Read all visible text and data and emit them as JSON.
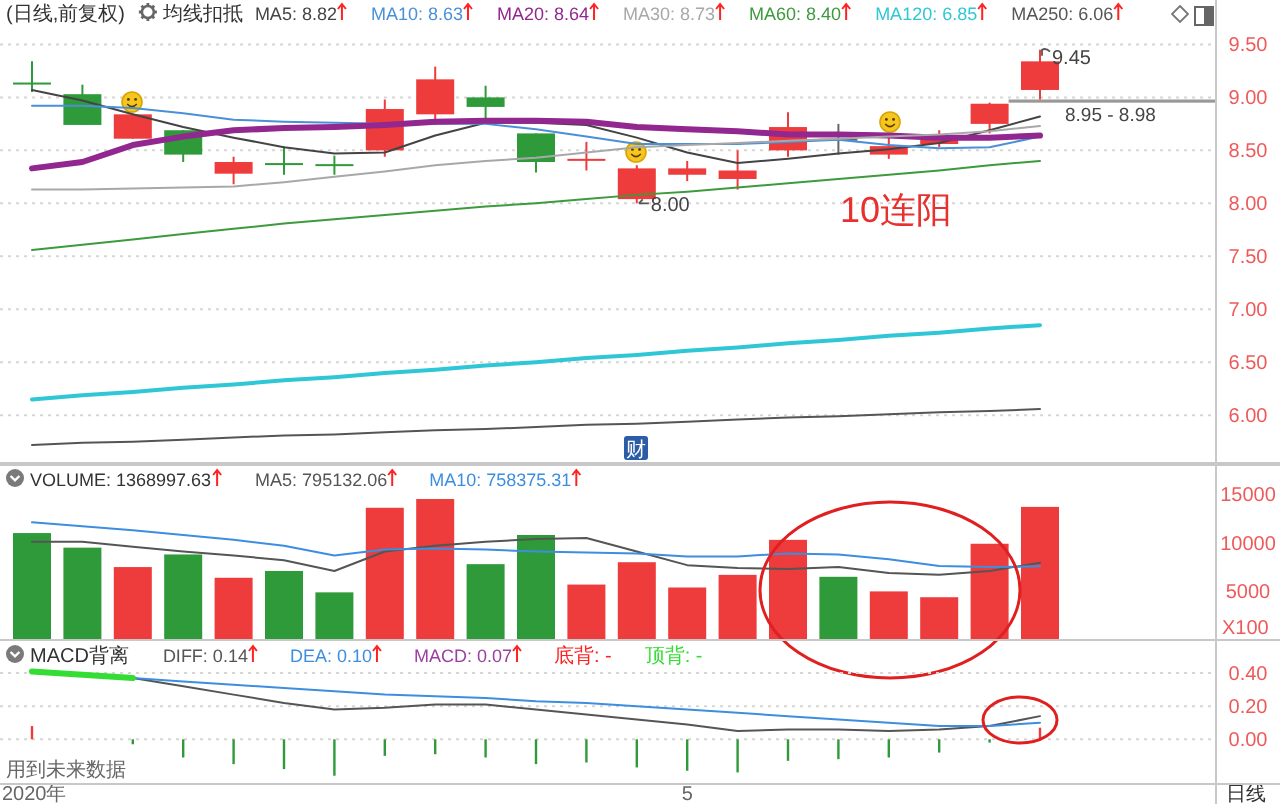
{
  "chart_data": [
    {
      "type": "candlestick",
      "title": "(日线,前复权)",
      "subtitle": "均线扣抵",
      "categories": [
        null,
        null,
        null,
        null,
        null,
        null,
        null,
        null,
        null,
        null,
        null,
        null,
        null,
        null,
        null,
        null,
        null,
        null,
        null,
        null,
        null
      ],
      "ohlc": [
        [
          9.14,
          9.34,
          9.05,
          9.13
        ],
        [
          9.03,
          9.12,
          8.74,
          8.74
        ],
        [
          8.61,
          8.84,
          8.61,
          8.84
        ],
        [
          8.69,
          8.69,
          8.39,
          8.46
        ],
        [
          8.28,
          8.44,
          8.18,
          8.39
        ],
        [
          8.38,
          8.54,
          8.27,
          8.37
        ],
        [
          8.37,
          8.45,
          8.27,
          8.36
        ],
        [
          8.5,
          8.98,
          8.44,
          8.89
        ],
        [
          8.84,
          9.29,
          8.79,
          9.17
        ],
        [
          9.0,
          9.11,
          8.79,
          8.91
        ],
        [
          8.66,
          8.66,
          8.29,
          8.39
        ],
        [
          8.41,
          8.58,
          8.31,
          8.42
        ],
        [
          8.04,
          8.36,
          8.0,
          8.33
        ],
        [
          8.27,
          8.4,
          8.21,
          8.33
        ],
        [
          8.23,
          8.5,
          8.13,
          8.31
        ],
        [
          8.5,
          8.86,
          8.44,
          8.72
        ],
        [
          8.61,
          8.75,
          8.46,
          8.61
        ],
        [
          8.46,
          8.63,
          8.42,
          8.54
        ],
        [
          8.56,
          8.69,
          8.53,
          8.63
        ],
        [
          8.75,
          8.95,
          8.66,
          8.94
        ],
        [
          9.07,
          9.45,
          8.98,
          9.34
        ]
      ],
      "colors": [
        "#2f9a3a",
        "#2f9a3a",
        "#ee3b3b",
        "#2f9a3a",
        "#ee3b3b",
        "#2f9a3a",
        "#2f9a3a",
        "#ee3b3b",
        "#ee3b3b",
        "#2f9a3a",
        "#2f9a3a",
        "#ee3b3b",
        "#ee3b3b",
        "#ee3b3b",
        "#ee3b3b",
        "#ee3b3b",
        "#666666",
        "#ee3b3b",
        "#ee3b3b",
        "#ee3b3b",
        "#ee3b3b"
      ],
      "series": [
        {
          "name": "MA5: 8.82",
          "type": "line",
          "color": "#444444",
          "values": [
            9.07,
            8.97,
            8.84,
            8.72,
            8.62,
            8.53,
            8.47,
            8.48,
            8.64,
            8.76,
            8.76,
            8.74,
            8.62,
            8.48,
            8.38,
            8.42,
            8.47,
            8.51,
            8.57,
            8.69,
            8.82
          ]
        },
        {
          "name": "MA10: 8.63",
          "type": "line",
          "color": "#4a90d9",
          "values": [
            8.92,
            8.92,
            8.9,
            8.85,
            8.79,
            8.77,
            8.76,
            8.75,
            8.75,
            8.75,
            8.7,
            8.63,
            8.56,
            8.56,
            8.56,
            8.58,
            8.6,
            8.55,
            8.52,
            8.53,
            8.63
          ]
        },
        {
          "name": "MA20: 8.64",
          "type": "line",
          "color": "#92278f",
          "values": [
            8.33,
            8.39,
            8.55,
            8.63,
            8.69,
            8.71,
            8.72,
            8.74,
            8.77,
            8.78,
            8.78,
            8.77,
            8.72,
            8.7,
            8.68,
            8.65,
            8.65,
            8.64,
            8.62,
            8.62,
            8.64
          ]
        },
        {
          "name": "MA30: 8.73",
          "type": "line",
          "color": "#a8a8a8",
          "values": [
            8.13,
            8.13,
            8.14,
            8.15,
            8.16,
            8.2,
            8.25,
            8.3,
            8.36,
            8.4,
            8.43,
            8.48,
            8.53,
            8.55,
            8.57,
            8.59,
            8.61,
            8.63,
            8.65,
            8.68,
            8.73
          ]
        },
        {
          "name": "MA60: 8.40",
          "type": "line",
          "color": "#3d9a3d",
          "values": [
            7.56,
            7.61,
            7.66,
            7.71,
            7.76,
            7.81,
            7.85,
            7.89,
            7.93,
            7.97,
            8.0,
            8.04,
            8.08,
            8.11,
            8.15,
            8.19,
            8.23,
            8.27,
            8.31,
            8.36,
            8.4
          ]
        },
        {
          "name": "MA120: 6.85",
          "type": "line",
          "color": "#2fc6d6",
          "values": [
            6.15,
            6.19,
            6.22,
            6.26,
            6.29,
            6.33,
            6.36,
            6.4,
            6.43,
            6.47,
            6.5,
            6.54,
            6.57,
            6.61,
            6.64,
            6.68,
            6.71,
            6.75,
            6.78,
            6.82,
            6.85
          ]
        },
        {
          "name": "MA250: 6.06",
          "type": "line",
          "color": "#555555",
          "values": [
            5.72,
            5.74,
            5.75,
            5.77,
            5.79,
            5.81,
            5.82,
            5.84,
            5.86,
            5.87,
            5.89,
            5.91,
            5.92,
            5.94,
            5.96,
            5.98,
            5.99,
            6.01,
            6.03,
            6.04,
            6.06
          ]
        }
      ],
      "ylim": [
        5.55,
        9.9
      ],
      "yticks": [
        {
          "value": 6,
          "label": "6.00"
        },
        {
          "value": 6.5,
          "label": "6.50"
        },
        {
          "value": 7,
          "label": "7.00"
        },
        {
          "value": 7.5,
          "label": "7.50"
        },
        {
          "value": 8,
          "label": "8.00"
        },
        {
          "value": 8.5,
          "label": "8.50"
        },
        {
          "value": 9,
          "label": "9.00"
        },
        {
          "value": 9.5,
          "label": "9.50"
        }
      ],
      "grid": "y",
      "legend": "top",
      "tick_labels": "y",
      "bands": [
        {
          "axis": "y",
          "from": 8.95,
          "to": 8.98,
          "label": "8.95 - 8.98",
          "color": "#999999"
        }
      ],
      "annotations": [
        "9.45",
        "8.00",
        "10连阳",
        "财"
      ]
    },
    {
      "type": "bar",
      "title": "VOLUME: 1368997.63",
      "categories": [
        null,
        null,
        null,
        null,
        null,
        null,
        null,
        null,
        null,
        null,
        null,
        null,
        null,
        null,
        null,
        null,
        null,
        null,
        null,
        null,
        null
      ],
      "series": [
        {
          "colors": [
            "#2f9a3a",
            "#2f9a3a",
            "#ee3b3b",
            "#2f9a3a",
            "#ee3b3b",
            "#2f9a3a",
            "#2f9a3a",
            "#ee3b3b",
            "#ee3b3b",
            "#2f9a3a",
            "#2f9a3a",
            "#ee3b3b",
            "#ee3b3b",
            "#ee3b3b",
            "#ee3b3b",
            "#ee3b3b",
            "#2f9a3a",
            "#ee3b3b",
            "#ee3b3b",
            "#ee3b3b",
            "#ee3b3b"
          ],
          "values": [
            11000,
            9500,
            7500,
            8800,
            6400,
            7100,
            4900,
            13600,
            14500,
            7800,
            10800,
            5700,
            8000,
            5400,
            6700,
            10300,
            6500,
            5000,
            4400,
            9900,
            13690
          ]
        },
        {
          "name": "MA5: 795132.06",
          "type": "line",
          "color": "#555555",
          "values": [
            10100,
            10100,
            9600,
            9100,
            8700,
            8200,
            7100,
            9100,
            9700,
            10100,
            10400,
            10500,
            9100,
            7700,
            7400,
            7300,
            7500,
            6900,
            6700,
            7100,
            7950
          ]
        },
        {
          "name": "MA10: 758375.31",
          "type": "line",
          "color": "#3d8ee0",
          "values": [
            12100,
            11700,
            11300,
            10800,
            10300,
            9700,
            8700,
            9300,
            9400,
            9300,
            9100,
            9000,
            8900,
            8600,
            8600,
            8900,
            8800,
            8300,
            7600,
            7500,
            7580
          ]
        }
      ],
      "ylim": [
        0,
        18000
      ],
      "yticks": [
        5000,
        10000,
        15000
      ],
      "ylabel": "X100",
      "legend": "top left",
      "tick_labels": "y"
    },
    {
      "type": "line",
      "title": "MACD背离",
      "categories": [
        "2020年",
        null,
        null,
        null,
        null,
        null,
        null,
        null,
        null,
        null,
        null,
        null,
        null,
        "5",
        null,
        null,
        null,
        null,
        null,
        null,
        null
      ],
      "series": [
        {
          "name": "DIFF: 0.14",
          "color": "#555555",
          "values": [
            0.41,
            0.39,
            0.37,
            0.32,
            0.27,
            0.22,
            0.18,
            0.19,
            0.21,
            0.21,
            0.18,
            0.15,
            0.12,
            0.09,
            0.05,
            0.06,
            0.06,
            0.05,
            0.06,
            0.08,
            0.14
          ]
        },
        {
          "name": "DEA: 0.10",
          "color": "#3d8ee0",
          "values": [
            0.41,
            0.39,
            0.37,
            0.35,
            0.33,
            0.31,
            0.29,
            0.27,
            0.26,
            0.25,
            0.23,
            0.22,
            0.2,
            0.18,
            0.16,
            0.14,
            0.12,
            0.1,
            0.08,
            0.08,
            0.1
          ]
        },
        {
          "type": "bar",
          "color": "#9b3fa0",
          "colors": [
            "#ee3b3b",
            null,
            "#2f9a3a",
            "#2f9a3a",
            "#2f9a3a",
            "#2f9a3a",
            "#2f9a3a",
            "#2f9a3a",
            "#2f9a3a",
            "#2f9a3a",
            "#2f9a3a",
            "#2f9a3a",
            "#2f9a3a",
            "#2f9a3a",
            "#2f9a3a",
            "#2f9a3a",
            "#2f9a3a",
            "#2f9a3a",
            "#2f9a3a",
            "#2f9a3a",
            "#ee3b3b"
          ],
          "values": [
            0.08,
            null,
            -0.03,
            -0.11,
            -0.15,
            -0.18,
            -0.22,
            -0.1,
            -0.09,
            -0.11,
            -0.15,
            -0.14,
            -0.17,
            -0.19,
            -0.2,
            -0.13,
            -0.12,
            -0.11,
            -0.08,
            -0.02,
            0.07
          ]
        },
        {
          "name": "底背: -",
          "color": "#ff2222",
          "values": [
            null,
            null,
            null,
            null,
            null,
            null,
            null,
            null,
            null,
            null,
            null,
            null,
            null,
            null,
            null,
            null,
            null,
            null,
            null,
            null,
            null
          ]
        },
        {
          "name": "顶背: -",
          "color": "#33dd33",
          "values": [
            0.41,
            0.39,
            0.37,
            null,
            null,
            null,
            null,
            null,
            null,
            null,
            null,
            null,
            null,
            null,
            null,
            null,
            null,
            null,
            null,
            null,
            null
          ]
        }
      ],
      "ylim": [
        -0.27,
        0.6
      ],
      "yticks": [
        {
          "value": 0,
          "label": "0.00"
        },
        {
          "value": 0.2,
          "label": "0.20"
        },
        {
          "value": 0.4,
          "label": "0.40"
        }
      ],
      "grid": "y",
      "legend": "top left",
      "annotations": [
        "MACD: 0.07",
        "用到未来数据",
        "日线"
      ]
    }
  ]
}
